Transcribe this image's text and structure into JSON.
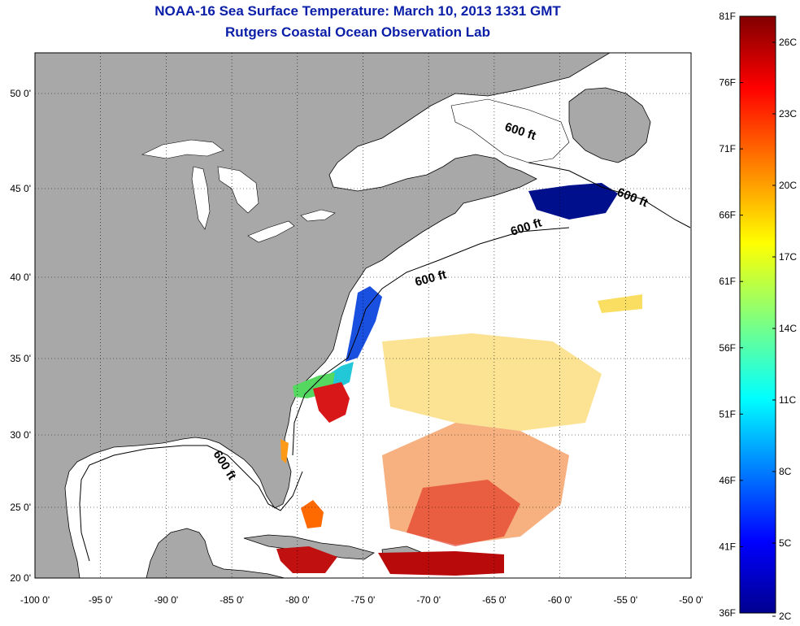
{
  "title_line1": "NOAA-16 Sea Surface Temperature:  March 10, 2013 1331 GMT",
  "title_line2": "Rutgers Coastal Ocean Observation Lab",
  "lon_ticks": [
    "-100 0'",
    "-95 0'",
    "-90 0'",
    "-85 0'",
    "-80 0'",
    "-75 0'",
    "-70 0'",
    "-65 0'",
    "-60 0'",
    "-55 0'",
    "-50 0'"
  ],
  "lat_ticks": [
    "50 0'",
    "45 0'",
    "40 0'",
    "35 0'",
    "30 0'",
    "25 0'",
    "20 0'"
  ],
  "shelf_label": "600 ft",
  "colorbar": {
    "f_labels": [
      "81F",
      "76F",
      "71F",
      "66F",
      "61F",
      "56F",
      "51F",
      "46F",
      "41F",
      "36F"
    ],
    "c_labels": [
      "26C",
      "23C",
      "20C",
      "17C",
      "14C",
      "11C",
      "8C",
      "5C",
      "2C"
    ]
  },
  "colors": {
    "land": "#a8a8a8",
    "ocean": "#ffffff",
    "title": "#0a1ea8"
  }
}
